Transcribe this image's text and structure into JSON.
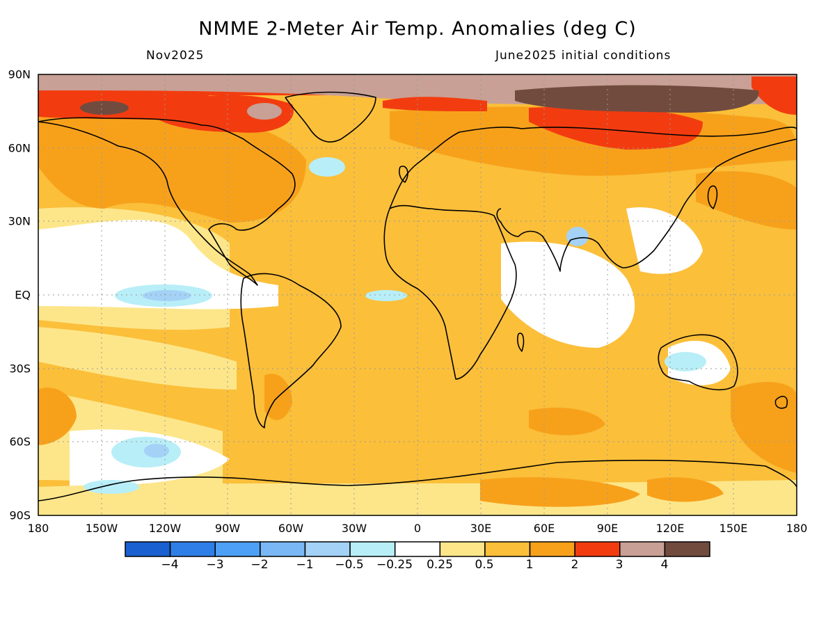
{
  "header": {
    "title": "NMME 2-Meter Air Temp. Anomalies (deg C)",
    "month": "Nov2025",
    "initial_conditions": "June2025 initial conditions"
  },
  "axes": {
    "lat_labels": [
      "90N",
      "60N",
      "30N",
      "EQ",
      "30S",
      "60S",
      "90S"
    ],
    "lon_labels": [
      "180",
      "150W",
      "120W",
      "90W",
      "60W",
      "30W",
      "0",
      "30E",
      "60E",
      "90E",
      "120E",
      "150E",
      "180"
    ]
  },
  "legend": {
    "colors": [
      "#1a60d0",
      "#2f7ee8",
      "#4da0f5",
      "#79b8f5",
      "#a4d2f7",
      "#b8eef7",
      "#ffffff",
      "#fde68a",
      "#fbbf3a",
      "#f7a11b",
      "#f23c10",
      "#c8a095",
      "#724b3f"
    ],
    "labels": [
      "−4",
      "−3",
      "−2",
      "−1",
      "−0.5",
      "−0.25",
      "0.25",
      "0.5",
      "1",
      "2",
      "3",
      "4"
    ]
  },
  "map": {
    "lon_range": [
      -180,
      180
    ],
    "lat_range": [
      -90,
      90
    ],
    "grid": "dotted every 30 degrees"
  }
}
